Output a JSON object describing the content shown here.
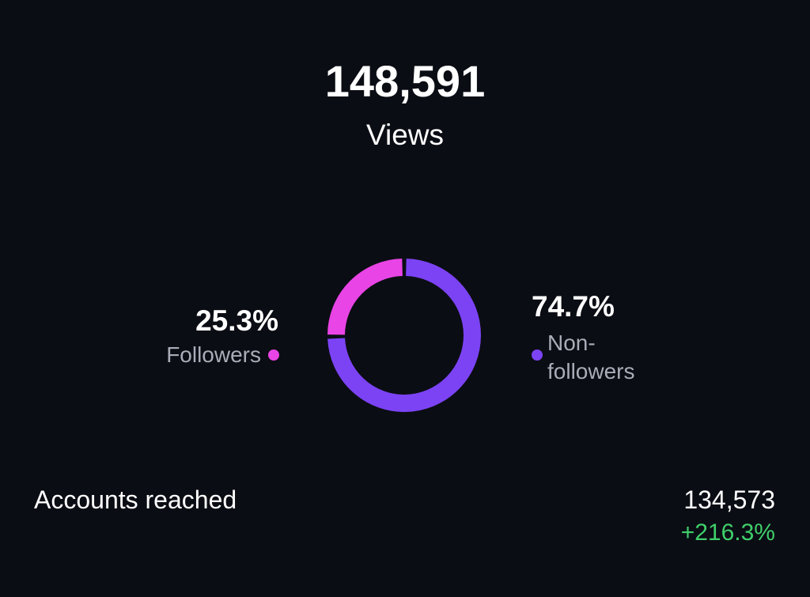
{
  "header": {
    "value": "148,591",
    "label": "Views"
  },
  "chart_data": {
    "type": "donut",
    "categories": [
      "Followers",
      "Non-followers"
    ],
    "values": [
      25.3,
      74.7
    ],
    "value_labels": [
      "25.3%",
      "74.7%"
    ],
    "colors": [
      "#e944e6",
      "#7c43f5"
    ]
  },
  "accounts_reached": {
    "label": "Accounts reached",
    "value": "134,573",
    "change": "+216.3%"
  }
}
